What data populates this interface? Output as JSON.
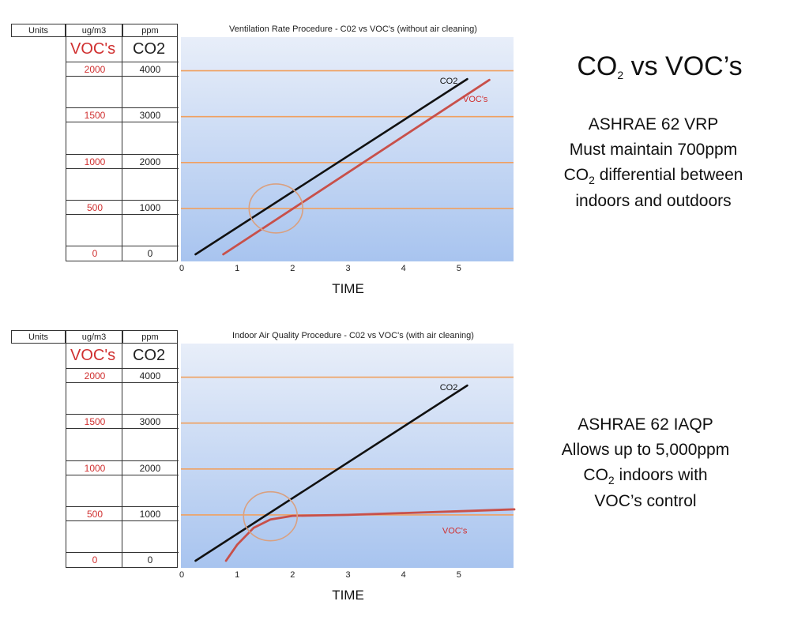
{
  "headline": {
    "main": "CO",
    "sub": "2",
    "rest": " vs VOC’s"
  },
  "vrp_text": {
    "line1": "ASHRAE 62 VRP",
    "line2": "Must maintain 700ppm",
    "line3_pre": "CO",
    "line3_sub": "2",
    "line3_post": " differential  between",
    "line4": "indoors and outdoors"
  },
  "iaqp_text": {
    "line1": "ASHRAE 62 IAQP",
    "line2": "Allows up to 5,000ppm",
    "line3_pre": "CO",
    "line3_sub": "2",
    "line3_post": " indoors with",
    "line4": "VOC’s control"
  },
  "colors": {
    "co2_line": "#111111",
    "voc_line": "#c8504a",
    "grid": "#f0a060",
    "plot_top": "#e8eef9",
    "plot_bottom": "#a8c4ef",
    "voc_text": "#d03030"
  },
  "chart_data": [
    {
      "type": "line",
      "title": "Ventilation Rate Procedure - C02 vs VOC's (without air cleaning)",
      "xlabel": "TIME",
      "x_ticks": [
        "0",
        "1",
        "2",
        "3",
        "4",
        "5"
      ],
      "table": {
        "headers": [
          "Units",
          "ug/m3",
          "ppm"
        ],
        "voc_header": "VOC's",
        "co2_header": "CO2",
        "rows": [
          {
            "voc": "2000",
            "ppm": "4000"
          },
          {
            "voc": "1500",
            "ppm": "3000"
          },
          {
            "voc": "1000",
            "ppm": "2000"
          },
          {
            "voc": "500",
            "ppm": "1000"
          },
          {
            "voc": "0",
            "ppm": "0"
          }
        ]
      },
      "xlim": [
        0,
        6
      ],
      "ylim_ppm": [
        0,
        4500
      ],
      "series": [
        {
          "name": "CO2",
          "x": [
            0.25,
            5.15
          ],
          "y": [
            0,
            3820
          ]
        },
        {
          "name": "VOC's",
          "x": [
            0.75,
            5.55
          ],
          "y": [
            0,
            3800
          ]
        }
      ],
      "annotation": "circle around crossing of 1000 ppm"
    },
    {
      "type": "line",
      "title": "Indoor Air Quality Procedure - C02 vs VOC's (with air cleaning)",
      "xlabel": "TIME",
      "x_ticks": [
        "0",
        "1",
        "2",
        "3",
        "4",
        "5"
      ],
      "table": {
        "headers": [
          "Units",
          "ug/m3",
          "ppm"
        ],
        "voc_header": "VOC's",
        "co2_header": "CO2",
        "rows": [
          {
            "voc": "2000",
            "ppm": "4000"
          },
          {
            "voc": "1500",
            "ppm": "3000"
          },
          {
            "voc": "1000",
            "ppm": "2000"
          },
          {
            "voc": "500",
            "ppm": "1000"
          },
          {
            "voc": "0",
            "ppm": "0"
          }
        ]
      },
      "xlim": [
        0,
        6
      ],
      "ylim_ppm": [
        0,
        4500
      ],
      "series": [
        {
          "name": "CO2",
          "x": [
            0.25,
            5.15
          ],
          "y": [
            0,
            3820
          ]
        },
        {
          "name": "VOC's",
          "x": [
            0.8,
            1.0,
            1.3,
            1.6,
            2.0,
            2.5,
            3.0,
            4.0,
            5.0,
            6.0
          ],
          "y": [
            0,
            350,
            720,
            900,
            980,
            990,
            1000,
            1040,
            1080,
            1120
          ]
        }
      ],
      "annotation": "circle around VOC leveling at 1000 ppm"
    }
  ]
}
